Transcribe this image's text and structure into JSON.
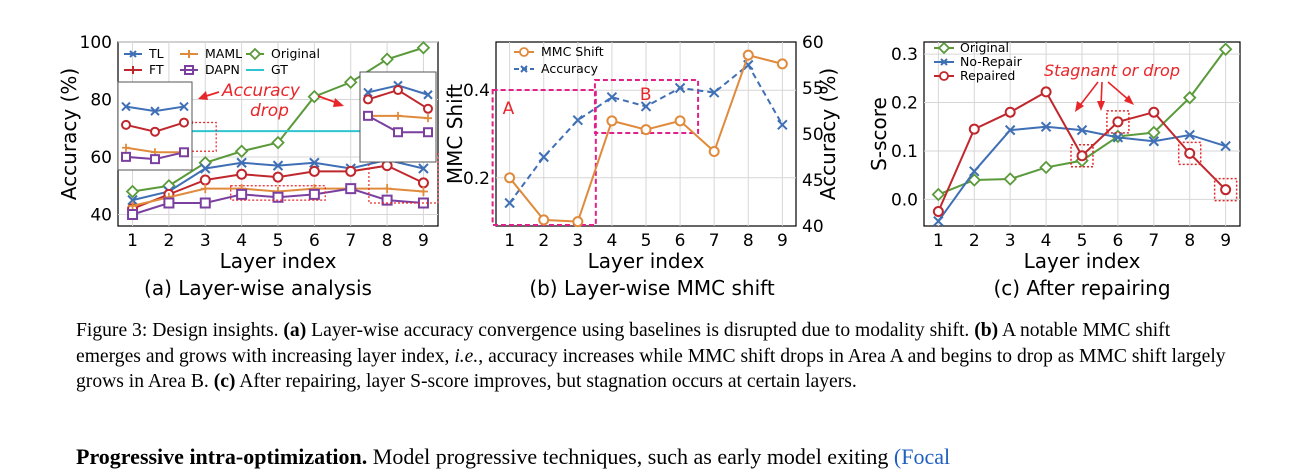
{
  "colors": {
    "TL": "#3f6fb5",
    "FT": "#c0272d",
    "MAML": "#e08a3c",
    "DAPN": "#7b3fa0",
    "Original": "#5a9a3a",
    "GT": "#2ec4d0",
    "annotation": "#e8262a",
    "highlight": "#e0218a",
    "mmc": "#e08a3c",
    "acc_b": "#3f6fb5",
    "no_repair": "#3f6fb5",
    "repaired": "#c0272d"
  },
  "chart_data": [
    {
      "type": "line",
      "panel": "a",
      "title": "(a) Layer-wise analysis",
      "xlabel": "Layer index",
      "ylabel": "Accuracy (%)",
      "xlim": [
        0.6,
        9.4
      ],
      "ylim": [
        36,
        100
      ],
      "x_ticks": [
        1,
        2,
        3,
        4,
        5,
        6,
        7,
        8,
        9
      ],
      "y_ticks": [
        40,
        60,
        80,
        100
      ],
      "categories": [
        1,
        2,
        3,
        4,
        5,
        6,
        7,
        8,
        9
      ],
      "legend": [
        "TL",
        "FT",
        "MAML",
        "DAPN",
        "Original",
        "GT"
      ],
      "series": [
        {
          "name": "Original",
          "values": [
            48,
            50,
            58,
            62,
            65,
            81,
            86,
            94,
            98
          ],
          "marker": "diamond"
        },
        {
          "name": "TL",
          "values": [
            45,
            48,
            56,
            58,
            57,
            58,
            56,
            59,
            56
          ],
          "marker": "x"
        },
        {
          "name": "FT",
          "values": [
            42,
            47,
            52,
            54,
            53,
            55,
            55,
            57,
            51
          ],
          "marker": "circle"
        },
        {
          "name": "MAML",
          "values": [
            43,
            46,
            49,
            49,
            48,
            49,
            49,
            49,
            48
          ],
          "marker": "plus"
        },
        {
          "name": "DAPN",
          "values": [
            40,
            44,
            44,
            47,
            46,
            47,
            49,
            45,
            44
          ],
          "marker": "square"
        },
        {
          "name": "GT",
          "values": [
            69,
            69,
            69,
            69,
            69,
            69,
            69,
            69,
            69
          ],
          "marker": "none"
        }
      ],
      "insets": [
        {
          "position": "left",
          "layers": [
            1,
            2,
            3
          ],
          "TL": [
            81,
            79,
            81
          ],
          "FT": [
            73,
            70,
            74
          ],
          "MAML": [
            63,
            61,
            61
          ],
          "DAPN": [
            59,
            58,
            61
          ]
        },
        {
          "position": "right",
          "layers": [
            8,
            9,
            10
          ],
          "TL": [
            83,
            86,
            82
          ],
          "FT": [
            80,
            84,
            76
          ],
          "MAML": [
            73,
            73,
            72
          ],
          "DAPN": [
            73,
            66,
            66
          ]
        }
      ],
      "annotations": [
        "Accuracy",
        "drop"
      ]
    },
    {
      "type": "line",
      "panel": "b",
      "title": "(b) Layer-wise MMC shift",
      "xlabel": "Layer index",
      "ylabel_left": "MMC Shift",
      "ylabel_right": "Accuracy (%)",
      "xlim": [
        0.6,
        9.4
      ],
      "ylim_left": [
        0.09,
        0.51
      ],
      "ylim_right": [
        40,
        60
      ],
      "x_ticks": [
        1,
        2,
        3,
        4,
        5,
        6,
        7,
        8,
        9
      ],
      "y_ticks_left": [
        0.2,
        0.4
      ],
      "y_ticks_right": [
        40,
        45,
        50,
        55,
        60
      ],
      "categories": [
        1,
        2,
        3,
        4,
        5,
        6,
        7,
        8,
        9
      ],
      "legend": [
        "MMC Shift",
        "Accuracy"
      ],
      "series": [
        {
          "name": "MMC Shift",
          "axis": "left",
          "values": [
            0.2,
            0.104,
            0.1,
            0.33,
            0.31,
            0.33,
            0.26,
            0.48,
            0.46
          ]
        },
        {
          "name": "Accuracy",
          "axis": "right",
          "values": [
            42.5,
            47.5,
            51.5,
            54,
            53,
            55,
            54.5,
            57.5,
            51
          ]
        }
      ],
      "areas": [
        {
          "label": "A",
          "layers": [
            1,
            3
          ]
        },
        {
          "label": "B",
          "layers": [
            4,
            6
          ]
        }
      ]
    },
    {
      "type": "line",
      "panel": "c",
      "title": "(c) After repairing",
      "xlabel": "Layer index",
      "ylabel": "S-score",
      "xlim": [
        0.6,
        9.4
      ],
      "ylim": [
        -0.055,
        0.325
      ],
      "x_ticks": [
        1,
        2,
        3,
        4,
        5,
        6,
        7,
        8,
        9
      ],
      "y_ticks": [
        0.0,
        0.1,
        0.2,
        0.3
      ],
      "categories": [
        1,
        2,
        3,
        4,
        5,
        6,
        7,
        8,
        9
      ],
      "legend": [
        "Original",
        "No-Repair",
        "Repaired"
      ],
      "series": [
        {
          "name": "Original",
          "values": [
            0.01,
            0.04,
            0.042,
            0.066,
            0.08,
            0.13,
            0.138,
            0.21,
            0.31
          ]
        },
        {
          "name": "No-Repair",
          "values": [
            -0.045,
            0.058,
            0.143,
            0.15,
            0.143,
            0.128,
            0.12,
            0.133,
            0.11
          ]
        },
        {
          "name": "Repaired",
          "values": [
            -0.025,
            0.145,
            0.18,
            0.222,
            0.09,
            0.16,
            0.18,
            0.095,
            0.02
          ]
        }
      ],
      "highlighted_layers": [
        5,
        6,
        8,
        9
      ],
      "annotations": [
        "Stagnant or drop"
      ]
    }
  ],
  "caption": {
    "label": "Figure 3: Design insights.",
    "a_marker": "(a)",
    "a_text": " Layer-wise accuracy convergence using baselines is disrupted due to modality shift. ",
    "b_marker": "(b)",
    "b_text1": " A notable MMC shift emerges and grows with increasing layer index, ",
    "ie": "i.e.",
    "b_text2": ", accuracy increases while MMC shift drops in Area A and begins to drop as MMC shift largely grows in Area B. ",
    "c_marker": "(c)",
    "c_text": " After repairing, layer S-score improves, but stagnation occurs at certain layers."
  },
  "body_cut": {
    "bold": "Progressive intra-optimization.",
    "text": " Model progressive techniques, such as early model exiting ",
    "link": "(Focal"
  }
}
